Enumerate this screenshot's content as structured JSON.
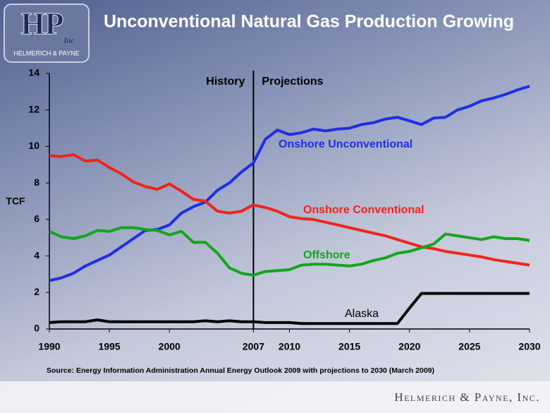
{
  "logo": {
    "initials": "HP",
    "inc": "Inc",
    "name": "HELMERICH & PAYNE"
  },
  "footer": "Helmerich & Payne, Inc.",
  "chart_data": {
    "type": "line",
    "title": "Unconventional Natural Gas Production Growing",
    "y_label": "TCF",
    "source": "Source: Energy Information Administration Annual Energy Outlook 2009 with projections to 2030 (March 2009)",
    "annotations": [
      "History",
      "Projections"
    ],
    "x": [
      1990,
      1991,
      1992,
      1993,
      1994,
      1995,
      1996,
      1997,
      1998,
      1999,
      2000,
      2001,
      2002,
      2003,
      2004,
      2005,
      2006,
      2007,
      2008,
      2009,
      2010,
      2011,
      2012,
      2013,
      2014,
      2015,
      2016,
      2017,
      2018,
      2019,
      2020,
      2021,
      2022,
      2023,
      2024,
      2025,
      2026,
      2027,
      2028,
      2029,
      2030
    ],
    "xlim": [
      1990,
      2030
    ],
    "xticks": [
      1990,
      1995,
      2000,
      2007,
      2010,
      2015,
      2020,
      2025,
      2030
    ],
    "ylim": [
      0,
      14
    ],
    "yticks": [
      0,
      2,
      4,
      6,
      8,
      10,
      12,
      14
    ],
    "series": [
      {
        "name": "Onshore Unconventional",
        "color": "#1f2ee8",
        "values": [
          2.65,
          2.8,
          3.05,
          3.45,
          3.75,
          4.05,
          4.5,
          4.95,
          5.4,
          5.45,
          5.7,
          6.35,
          6.7,
          6.95,
          7.6,
          8.0,
          8.6,
          9.1,
          10.4,
          10.9,
          10.65,
          10.75,
          10.95,
          10.85,
          10.95,
          11.0,
          11.2,
          11.3,
          11.5,
          11.6,
          11.4,
          11.2,
          11.55,
          11.6,
          12.0,
          12.2,
          12.5,
          12.65,
          12.85,
          13.1,
          13.3
        ]
      },
      {
        "name": "Onshore Conventional",
        "color": "#f0241c",
        "values": [
          9.5,
          9.45,
          9.55,
          9.2,
          9.25,
          8.85,
          8.5,
          8.05,
          7.8,
          7.65,
          7.95,
          7.55,
          7.1,
          7.0,
          6.45,
          6.35,
          6.45,
          6.8,
          6.65,
          6.45,
          6.15,
          6.05,
          6.0,
          5.85,
          5.7,
          5.55,
          5.4,
          5.25,
          5.1,
          4.9,
          4.7,
          4.5,
          4.4,
          4.25,
          4.15,
          4.05,
          3.95,
          3.8,
          3.7,
          3.6,
          3.5
        ]
      },
      {
        "name": "Offshore",
        "color": "#14a51c",
        "values": [
          5.35,
          5.05,
          4.95,
          5.1,
          5.4,
          5.35,
          5.55,
          5.55,
          5.45,
          5.4,
          5.15,
          5.35,
          4.75,
          4.75,
          4.15,
          3.35,
          3.05,
          2.95,
          3.15,
          3.2,
          3.25,
          3.5,
          3.55,
          3.55,
          3.5,
          3.45,
          3.55,
          3.75,
          3.9,
          4.15,
          4.25,
          4.45,
          4.65,
          5.2,
          5.1,
          5.0,
          4.9,
          5.05,
          4.95,
          4.95,
          4.85
        ]
      },
      {
        "name": "Alaska",
        "color": "#000000",
        "values": [
          0.35,
          0.4,
          0.4,
          0.4,
          0.5,
          0.4,
          0.4,
          0.4,
          0.4,
          0.4,
          0.4,
          0.4,
          0.4,
          0.45,
          0.4,
          0.45,
          0.4,
          0.4,
          0.35,
          0.35,
          0.35,
          0.3,
          0.3,
          0.3,
          0.3,
          0.3,
          0.3,
          0.3,
          0.3,
          0.3,
          1.15,
          1.95,
          1.95,
          1.95,
          1.95,
          1.95,
          1.95,
          1.95,
          1.95,
          1.95,
          1.95
        ]
      }
    ]
  }
}
